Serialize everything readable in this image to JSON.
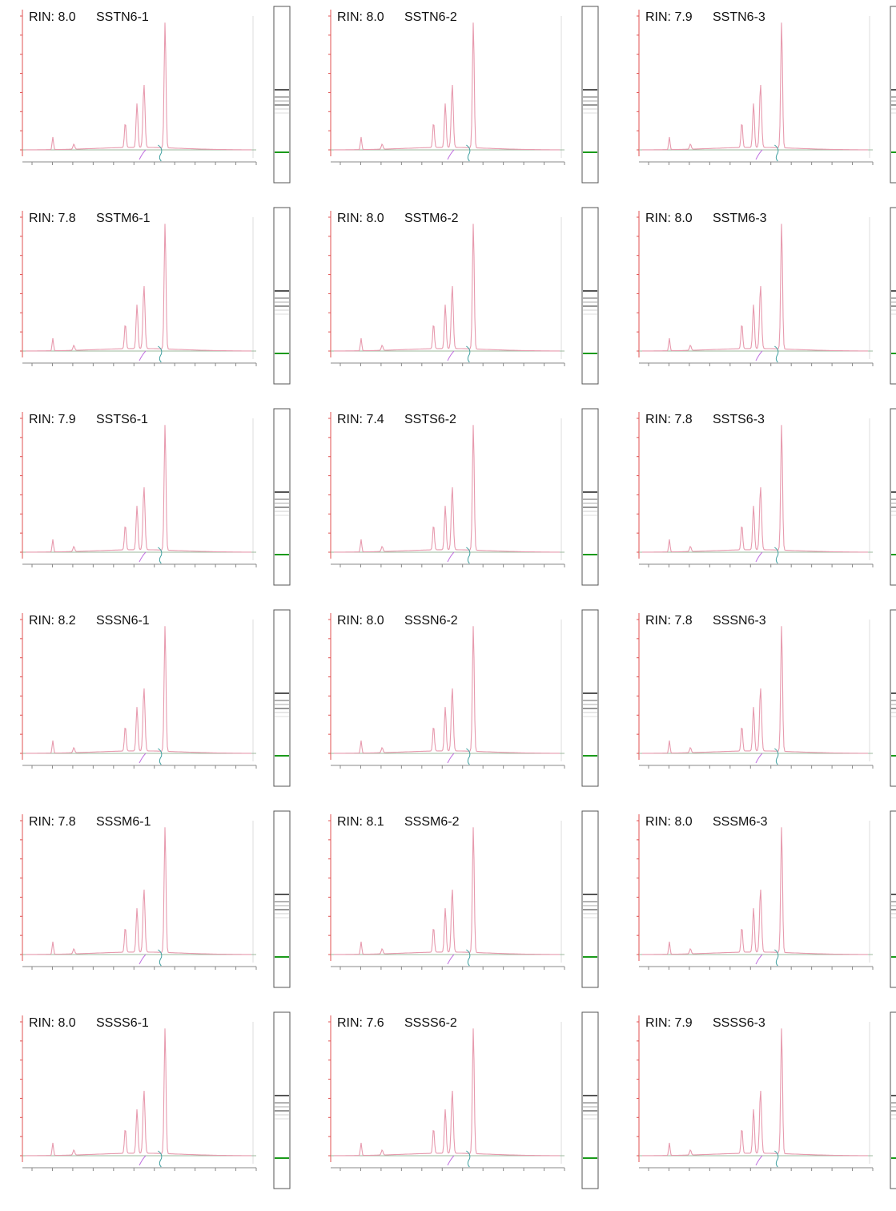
{
  "panels": [
    {
      "rin": "RIN: 8.0",
      "sample": "SSTN6-1"
    },
    {
      "rin": "RIN: 8.0",
      "sample": "SSTN6-2"
    },
    {
      "rin": "RIN: 7.9",
      "sample": "SSTN6-3"
    },
    {
      "rin": "RIN: 7.8",
      "sample": "SSTM6-1"
    },
    {
      "rin": "RIN: 8.0",
      "sample": "SSTM6-2"
    },
    {
      "rin": "RIN: 8.0",
      "sample": "SSTM6-3"
    },
    {
      "rin": "RIN: 7.9",
      "sample": "SSTS6-1"
    },
    {
      "rin": "RIN: 7.4",
      "sample": "SSTS6-2"
    },
    {
      "rin": "RIN: 7.8",
      "sample": "SSTS6-3"
    },
    {
      "rin": "RIN: 8.2",
      "sample": "SSSN6-1"
    },
    {
      "rin": "RIN: 8.0",
      "sample": "SSSN6-2"
    },
    {
      "rin": "RIN: 7.8",
      "sample": "SSSN6-3"
    },
    {
      "rin": "RIN: 7.8",
      "sample": "SSSM6-1"
    },
    {
      "rin": "RIN: 8.1",
      "sample": "SSSM6-2"
    },
    {
      "rin": "RIN: 8.0",
      "sample": "SSSM6-3"
    },
    {
      "rin": "RIN: 8.0",
      "sample": "SSSS6-1"
    },
    {
      "rin": "RIN: 7.6",
      "sample": "SSSS6-2"
    },
    {
      "rin": "RIN: 7.9",
      "sample": "SSSS6-3"
    }
  ]
}
